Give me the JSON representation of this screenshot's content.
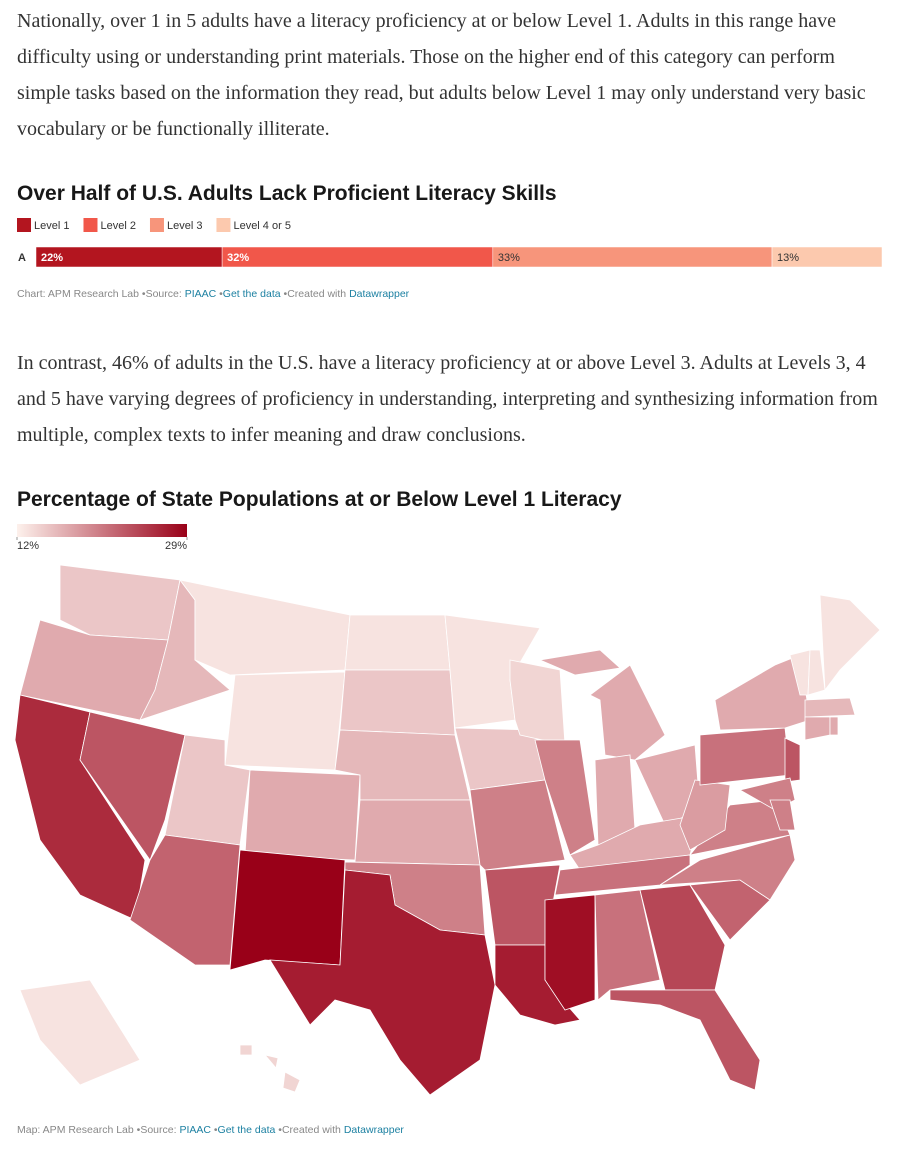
{
  "paragraphs": [
    "Nationally, over 1 in 5 adults have a literacy proficiency at or below Level 1. Adults in this range have difficulty using or understanding print materials. Those on the higher end of this category can perform simple tasks based on the information they read, but adults below Level 1 may only understand very basic vocabulary or be functionally illiterate.",
    "In contrast, 46% of adults in the U.S. have a literacy proficiency at or above Level 3. Adults at Levels 3, 4 and 5 have varying degrees of proficiency in understanding, interpreting and synthesizing information from multiple, complex texts to infer meaning and draw conclusions."
  ],
  "chart_data": [
    {
      "type": "stacked-bar",
      "title": "Over Half of U.S. Adults Lack Proficient Literacy Skills",
      "categories": [
        "A"
      ],
      "xlim": [
        0,
        100
      ],
      "series": [
        {
          "name": "Level 1",
          "color": "#b3151f",
          "values": [
            22
          ],
          "value_labels": [
            "22%"
          ]
        },
        {
          "name": "Level 2",
          "color": "#f1574a",
          "values": [
            32
          ],
          "value_labels": [
            "32%"
          ]
        },
        {
          "name": "Level 3",
          "color": "#f7957b",
          "values": [
            33
          ],
          "value_labels": [
            "33%"
          ]
        },
        {
          "name": "Level 4 or 5",
          "color": "#fcc9ae",
          "values": [
            13
          ],
          "value_labels": [
            "13%"
          ]
        }
      ],
      "footer": {
        "credit": "Chart: APM Research Lab",
        "source_label": "Source:",
        "source": "PIAAC",
        "data_link": "Get the data",
        "created": "Created with",
        "tool": "Datawrapper"
      }
    },
    {
      "type": "choropleth",
      "title": "Percentage of State Populations at or Below Level 1 Literacy",
      "colors": [
        "#fdf1ec",
        "#990018"
      ],
      "clim": [
        12,
        29
      ],
      "cticks": [
        {
          "value": 12,
          "label": "12%"
        },
        {
          "value": 29,
          "label": "29%"
        }
      ],
      "values": [
        15,
        17,
        26,
        23,
        16,
        13,
        13,
        15,
        22,
        17,
        29,
        13,
        15,
        16,
        17,
        20,
        27,
        13,
        15,
        20,
        23,
        27,
        14,
        20,
        28,
        17,
        17,
        17,
        17,
        21,
        21,
        24,
        23,
        22,
        20,
        20,
        18,
        21,
        17,
        23,
        20,
        20,
        13,
        13,
        13,
        16,
        17,
        17,
        13,
        14
      ],
      "footer": {
        "credit": "Map: APM Research Lab",
        "source_label": "Source:",
        "source": "PIAAC",
        "data_link": "Get the data",
        "created": "Created with",
        "tool": "Datawrapper"
      }
    }
  ]
}
